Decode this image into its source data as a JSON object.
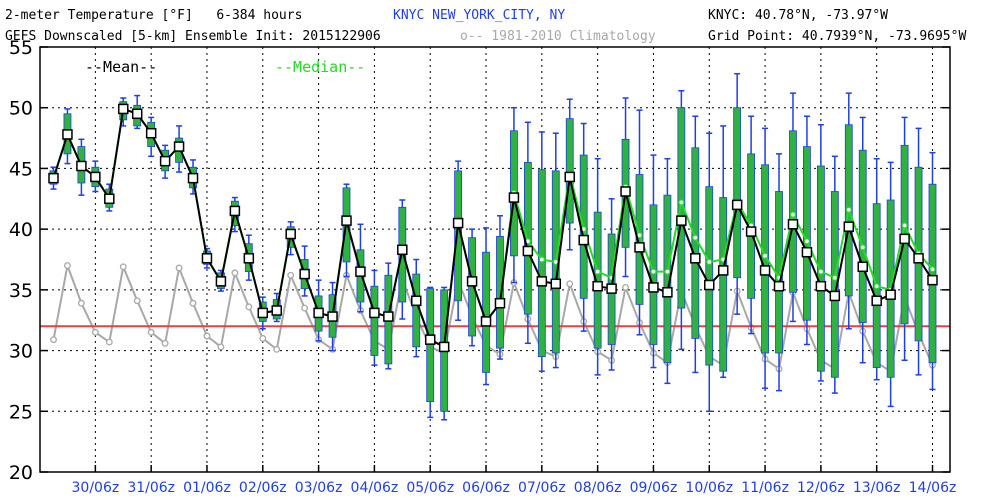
{
  "header": {
    "left_line1": "2-meter Temperature [°F]   6-384 hours",
    "left_line2": "GEFS Downscaled [5-km] Ensemble Init: 2015122906",
    "station": "KNYC NEW_YORK_CITY, NY",
    "climo_legend": "o-- 1981-2010 Climatology",
    "right_line1": "KNYC: 40.78°N, -73.97°W",
    "right_line2": "Grid Point: 40.7939°N, -73.9695°W"
  },
  "colors": {
    "mean": "#000000",
    "median": "#22dd22",
    "box": "#2fb23f",
    "whisker": "#1f3fe6",
    "climatology": "#a8a8a8",
    "freezing": "#e84040",
    "dates": "#1f3fe6"
  },
  "chart_data": {
    "type": "line",
    "legend": {
      "mean": "--Mean--",
      "median": "--Median--"
    },
    "ylim": [
      20,
      55
    ],
    "yticks": [
      20,
      25,
      30,
      35,
      40,
      45,
      50,
      55
    ],
    "grid": true,
    "freezing_line": 32,
    "x_labels": [
      "30/06z",
      "31/06z",
      "01/06z",
      "02/06z",
      "03/06z",
      "04/06z",
      "05/06z",
      "06/06z",
      "07/06z",
      "08/06z",
      "09/06z",
      "10/06z",
      "11/06z",
      "12/06z",
      "13/06z",
      "14/06z"
    ],
    "lead_hours": [
      6,
      12,
      18,
      24,
      30,
      36,
      42,
      48,
      54,
      60,
      66,
      72,
      78,
      84,
      90,
      96,
      102,
      108,
      114,
      120,
      126,
      132,
      138,
      144,
      150,
      156,
      162,
      168,
      174,
      180,
      186,
      192,
      198,
      204,
      210,
      216,
      222,
      228,
      234,
      240,
      246,
      252,
      258,
      264,
      270,
      276,
      282,
      288,
      294,
      300,
      306,
      312,
      318,
      324,
      330,
      336,
      342,
      348,
      354,
      360,
      366,
      372,
      378,
      384
    ],
    "mean": [
      44.2,
      47.8,
      45.2,
      44.3,
      42.5,
      49.9,
      49.5,
      47.9,
      45.6,
      46.8,
      44.2,
      37.6,
      35.7,
      41.5,
      37.6,
      33.1,
      33.3,
      39.6,
      36.3,
      33.1,
      32.8,
      40.7,
      36.5,
      33.1,
      32.8,
      38.3,
      34.1,
      30.9,
      30.3,
      40.5,
      35.7,
      32.4,
      33.9,
      42.6,
      38.2,
      35.7,
      35.5,
      44.3,
      39.1,
      35.3,
      35.1,
      43.1,
      38.5,
      35.2,
      34.8,
      40.7,
      37.6,
      35.4,
      36.6,
      42.0,
      39.8,
      36.6,
      35.3,
      40.4,
      38.1,
      35.3,
      34.5,
      40.2,
      36.9,
      34.1,
      34.6,
      39.2,
      37.6,
      35.8
    ],
    "median": [
      44.2,
      47.8,
      45.2,
      44.3,
      42.5,
      49.9,
      49.5,
      47.9,
      45.6,
      46.8,
      44.2,
      37.6,
      35.7,
      41.5,
      37.6,
      33.1,
      33.3,
      39.6,
      36.3,
      33.1,
      32.8,
      40.7,
      36.5,
      33.1,
      32.8,
      38.3,
      34.1,
      30.9,
      30.3,
      40.5,
      35.7,
      32.4,
      33.9,
      43.0,
      39.0,
      37.5,
      37.3,
      44.5,
      40.0,
      36.5,
      36.0,
      43.5,
      39.5,
      36.5,
      36.5,
      42.2,
      39.3,
      37.3,
      37.5,
      42.2,
      40.3,
      37.8,
      36.0,
      41.2,
      39.0,
      36.5,
      36.0,
      41.6,
      38.5,
      35.3,
      35.0,
      40.3,
      38.0,
      36.7
    ],
    "q25": [
      43.7,
      46.2,
      43.8,
      43.5,
      41.8,
      49.0,
      48.5,
      46.8,
      44.8,
      45.5,
      43.4,
      37.1,
      35.1,
      40.3,
      36.5,
      32.4,
      32.6,
      38.5,
      35.1,
      31.6,
      31.1,
      37.3,
      34.0,
      29.6,
      28.9,
      34.0,
      30.3,
      25.8,
      25.0,
      34.1,
      31.2,
      28.2,
      30.2,
      37.8,
      33.0,
      29.5,
      29.8,
      40.5,
      34.3,
      30.2,
      30.5,
      38.5,
      33.8,
      30.5,
      29.0,
      33.5,
      31.0,
      28.8,
      28.3,
      36.0,
      34.3,
      29.8,
      29.8,
      34.8,
      32.5,
      28.3,
      27.8,
      34.5,
      32.3,
      28.6,
      27.8,
      32.2,
      30.8,
      29.0
    ],
    "q75": [
      44.8,
      49.5,
      46.8,
      45.1,
      43.3,
      50.5,
      50.2,
      48.8,
      46.5,
      47.5,
      45.1,
      38.2,
      36.4,
      42.3,
      38.8,
      34.0,
      34.2,
      40.2,
      37.5,
      34.5,
      34.6,
      43.4,
      38.3,
      35.3,
      36.2,
      41.8,
      36.3,
      35.1,
      35.0,
      44.8,
      39.3,
      38.1,
      39.4,
      48.1,
      45.5,
      44.9,
      44.8,
      49.1,
      46.1,
      41.4,
      39.6,
      47.4,
      44.5,
      42.0,
      42.8,
      50.0,
      46.7,
      43.5,
      42.6,
      50.0,
      46.2,
      45.3,
      43.1,
      48.1,
      46.8,
      45.2,
      43.1,
      48.6,
      46.5,
      42.1,
      42.4,
      46.9,
      45.1,
      43.7
    ],
    "min": [
      43.3,
      45.4,
      42.8,
      43.1,
      41.5,
      48.5,
      48.3,
      46.0,
      44.2,
      44.7,
      42.9,
      36.8,
      34.9,
      39.8,
      35.8,
      31.8,
      32.4,
      37.9,
      34.5,
      30.8,
      30.0,
      36.1,
      33.2,
      28.8,
      28.5,
      32.6,
      29.5,
      24.5,
      24.3,
      32.5,
      30.4,
      27.2,
      29.3,
      35.6,
      30.6,
      28.3,
      28.6,
      38.3,
      31.6,
      28.0,
      28.4,
      36.1,
      31.3,
      28.6,
      27.3,
      30.1,
      28.2,
      25.0,
      27.8,
      33.0,
      31.4,
      26.9,
      26.7,
      32.4,
      30.5,
      27.5,
      26.5,
      31.8,
      29.0,
      27.6,
      25.4,
      29.2,
      28.0,
      26.8
    ],
    "max": [
      45.1,
      49.9,
      47.4,
      45.6,
      43.7,
      50.8,
      51.0,
      49.2,
      46.9,
      48.5,
      45.7,
      38.4,
      36.6,
      42.6,
      39.5,
      34.4,
      34.7,
      40.6,
      38.6,
      35.8,
      35.6,
      43.7,
      40.4,
      36.6,
      37.2,
      42.4,
      37.5,
      35.2,
      35.2,
      45.6,
      40.0,
      40.1,
      41.1,
      50.0,
      48.8,
      48.0,
      47.9,
      50.7,
      48.7,
      45.8,
      42.5,
      50.8,
      49.8,
      46.1,
      45.8,
      51.4,
      49.3,
      47.9,
      48.5,
      52.8,
      49.3,
      48.3,
      46.2,
      51.2,
      49.3,
      48.6,
      46.0,
      51.2,
      49.2,
      45.8,
      45.5,
      49.2,
      48.3,
      46.3
    ],
    "climatology": [
      30.9,
      37.0,
      33.9,
      31.5,
      30.7,
      36.9,
      34.1,
      31.5,
      30.6,
      36.8,
      33.9,
      31.2,
      30.3,
      36.4,
      33.6,
      31.0,
      30.1,
      36.2,
      33.5,
      30.9,
      30.1,
      36.2,
      33.3,
      30.8,
      30.1,
      35.9,
      32.8,
      30.3,
      29.8,
      35.8,
      32.8,
      30.4,
      29.7,
      35.6,
      32.6,
      30.0,
      29.5,
      35.5,
      32.4,
      29.9,
      29.2,
      35.2,
      32.3,
      29.8,
      29.0,
      34.9,
      32.0,
      29.5,
      28.8,
      34.9,
      31.9,
      29.3,
      28.5,
      34.8,
      31.8,
      29.2,
      28.5,
      34.8,
      31.6,
      29.0,
      28.3,
      34.4,
      31.4,
      28.8
    ]
  }
}
